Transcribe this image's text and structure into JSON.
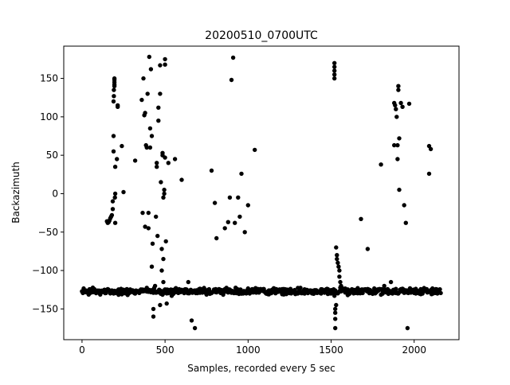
{
  "chart_data": {
    "type": "scatter",
    "title": "20200510_0700UTC",
    "xlabel": "Samples, recorded every 5 sec",
    "ylabel": "Backazimuth",
    "xlim": [
      -110,
      2270
    ],
    "ylim": [
      -190,
      192
    ],
    "xticks": [
      0,
      500,
      1000,
      1500,
      2000
    ],
    "yticks": [
      -150,
      -100,
      -50,
      0,
      50,
      100,
      150
    ],
    "marker_color": "#000000",
    "series": [
      {
        "name": "backazimuth",
        "baseline": {
          "x_start": 0,
          "x_end": 2160,
          "step": 5,
          "y_center": -127,
          "jitter": 3
        },
        "x": [
          150,
          155,
          160,
          165,
          170,
          175,
          180,
          185,
          185,
          190,
          190,
          190,
          192,
          192,
          195,
          195,
          195,
          195,
          195,
          198,
          200,
          200,
          200,
          210,
          215,
          215,
          240,
          250,
          320,
          360,
          365,
          370,
          375,
          380,
          380,
          385,
          390,
          395,
          400,
          400,
          405,
          410,
          410,
          415,
          420,
          420,
          425,
          430,
          430,
          440,
          445,
          450,
          450,
          455,
          460,
          460,
          470,
          470,
          470,
          475,
          475,
          480,
          480,
          485,
          485,
          490,
          490,
          490,
          495,
          495,
          500,
          500,
          500,
          505,
          510,
          520,
          540,
          560,
          600,
          640,
          660,
          680,
          760,
          780,
          800,
          810,
          820,
          850,
          860,
          880,
          890,
          900,
          910,
          920,
          940,
          950,
          960,
          980,
          1000,
          1040,
          1440,
          1480,
          1500,
          1520,
          1520,
          1520,
          1520,
          1520,
          1520,
          1525,
          1525,
          1525,
          1525,
          1530,
          1530,
          1535,
          1535,
          1540,
          1545,
          1550,
          1550,
          1555,
          1560,
          1600,
          1680,
          1720,
          1780,
          1800,
          1820,
          1860,
          1880,
          1880,
          1885,
          1890,
          1895,
          1900,
          1900,
          1905,
          1905,
          1910,
          1910,
          1920,
          1930,
          1940,
          1950,
          1960,
          1970,
          2000,
          2030,
          2090,
          2090,
          2100,
          2110
        ],
        "y": [
          -36,
          -38,
          -37,
          -35,
          -32,
          -30,
          -28,
          -20,
          -10,
          75,
          55,
          120,
          127,
          135,
          140,
          142,
          145,
          148,
          150,
          -5,
          -38,
          0,
          35,
          45,
          115,
          113,
          62,
          2,
          43,
          122,
          -25,
          150,
          102,
          105,
          -43,
          63,
          60,
          130,
          -45,
          -25,
          178,
          85,
          60,
          162,
          75,
          -95,
          -65,
          -160,
          -150,
          -120,
          -30,
          35,
          40,
          -55,
          112,
          95,
          167,
          130,
          -145,
          -130,
          15,
          -100,
          -72,
          53,
          50,
          -5,
          -85,
          -115,
          5,
          0,
          47,
          168,
          175,
          -62,
          -143,
          40,
          -133,
          45,
          18,
          -115,
          -165,
          -175,
          -125,
          30,
          -12,
          -58,
          -125,
          -130,
          -45,
          -37,
          -5,
          148,
          177,
          -38,
          -5,
          -30,
          26,
          -50,
          -15,
          57,
          -130,
          -125,
          -130,
          -133,
          170,
          165,
          160,
          155,
          150,
          -175,
          -155,
          -163,
          -150,
          -145,
          -70,
          -80,
          -85,
          -90,
          -95,
          -100,
          -108,
          -115,
          -120,
          -132,
          -33,
          -72,
          -125,
          38,
          -120,
          -115,
          63,
          118,
          115,
          110,
          100,
          63,
          45,
          140,
          135,
          72,
          5,
          118,
          113,
          -15,
          -38,
          -175,
          117,
          -125,
          -130,
          62,
          26,
          58,
          -130
        ]
      }
    ]
  }
}
